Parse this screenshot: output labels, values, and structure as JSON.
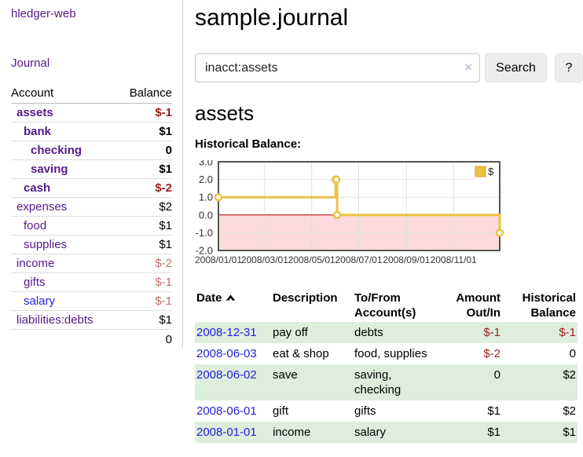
{
  "sidebar": {
    "brand": "hledger-web",
    "nav_journal": "Journal",
    "accounts_table": {
      "headers": [
        "Account",
        "Balance"
      ],
      "rows": [
        {
          "name": "assets",
          "indent": 0,
          "bold": true,
          "link_color": "purple",
          "balance": "$-1",
          "balance_style": "neg-strong"
        },
        {
          "name": "bank",
          "indent": 1,
          "bold": true,
          "link_color": "purple",
          "balance": "$1",
          "balance_style": "pos"
        },
        {
          "name": "checking",
          "indent": 2,
          "bold": true,
          "link_color": "purple",
          "balance": "0",
          "balance_style": "pos"
        },
        {
          "name": "saving",
          "indent": 2,
          "bold": true,
          "link_color": "purple",
          "balance": "$1",
          "balance_style": "pos"
        },
        {
          "name": "cash",
          "indent": 1,
          "bold": true,
          "link_color": "purple",
          "balance": "$-2",
          "balance_style": "neg-strong"
        },
        {
          "name": "expenses",
          "indent": 0,
          "bold": false,
          "link_color": "purple",
          "balance": "$2",
          "balance_style": "pos"
        },
        {
          "name": "food",
          "indent": 1,
          "bold": false,
          "link_color": "purple",
          "balance": "$1",
          "balance_style": "pos"
        },
        {
          "name": "supplies",
          "indent": 1,
          "bold": false,
          "link_color": "purple",
          "balance": "$1",
          "balance_style": "pos"
        },
        {
          "name": "income",
          "indent": 0,
          "bold": false,
          "link_color": "purple",
          "balance": "$-2",
          "balance_style": "neg-muted"
        },
        {
          "name": "gifts",
          "indent": 1,
          "bold": false,
          "link_color": "purple",
          "balance": "$-1",
          "balance_style": "neg-muted"
        },
        {
          "name": "salary",
          "indent": 1,
          "bold": false,
          "link_color": "blue",
          "balance": "$-1",
          "balance_style": "neg-muted"
        },
        {
          "name": "liabilities:debts",
          "indent": 0,
          "bold": false,
          "link_color": "purple",
          "balance": "$1",
          "balance_style": "pos"
        }
      ],
      "total": "0"
    }
  },
  "main": {
    "title": "sample.journal",
    "search": {
      "value": "inacct:assets",
      "clear_icon": "×",
      "button": "Search",
      "help_button": "?"
    },
    "account_heading": "assets",
    "chart_label": "Historical Balance:"
  },
  "chart_data": {
    "type": "line",
    "title": "Historical Balance",
    "xlim": [
      "2008-01-01",
      "2008-12-31"
    ],
    "ylim": [
      -2,
      3
    ],
    "x_ticks": [
      {
        "date": "2008-01-01",
        "label": "2008/01/01"
      },
      {
        "date": "2008-03-01",
        "label": "2008/03/01"
      },
      {
        "date": "2008-05-01",
        "label": "2008/05/01"
      },
      {
        "date": "2008-07-01",
        "label": "2008/07/01"
      },
      {
        "date": "2008-09-01",
        "label": "2008/09/01"
      },
      {
        "date": "2008-11-01",
        "label": "2008/11/01"
      }
    ],
    "y_ticks": [
      {
        "v": 3,
        "label": "3.0"
      },
      {
        "v": 2,
        "label": "2.0"
      },
      {
        "v": 1,
        "label": "1.0"
      },
      {
        "v": 0,
        "label": "0.0"
      },
      {
        "v": -1,
        "label": "-1.0"
      },
      {
        "v": -2,
        "label": "-2.0"
      }
    ],
    "series": [
      {
        "name": "$",
        "color": "#edc240",
        "step": true,
        "points": [
          [
            "2008-01-01",
            1
          ],
          [
            "2008-06-01",
            2
          ],
          [
            "2008-06-02",
            2
          ],
          [
            "2008-06-03",
            0
          ],
          [
            "2008-12-31",
            -1
          ]
        ]
      }
    ],
    "legend_position": "top-right",
    "negative_region_fill": "#fbdbdb",
    "zero_line_color": "#aa0000",
    "grid_color": "#e0e0e0",
    "border_color": "#555555"
  },
  "register": {
    "headers": [
      {
        "label": "Date",
        "sorted": "asc"
      },
      {
        "label": "Description"
      },
      {
        "label": "To/From Account(s)"
      },
      {
        "label": "Amount Out/In"
      },
      {
        "label": "Historical Balance"
      }
    ],
    "rows": [
      {
        "date": "2008-12-31",
        "description": "pay off",
        "accounts": "debts",
        "amount": "$-1",
        "amount_neg": true,
        "balance": "$-1",
        "balance_neg": true,
        "striped": true
      },
      {
        "date": "2008-06-03",
        "description": "eat & shop",
        "accounts": "food, supplies",
        "amount": "$-2",
        "amount_neg": true,
        "balance": "0",
        "balance_neg": false,
        "striped": false
      },
      {
        "date": "2008-06-02",
        "description": "save",
        "accounts": "saving, checking",
        "amount": "0",
        "amount_neg": false,
        "balance": "$2",
        "balance_neg": false,
        "striped": true
      },
      {
        "date": "2008-06-01",
        "description": "gift",
        "accounts": "gifts",
        "amount": "$1",
        "amount_neg": false,
        "balance": "$2",
        "balance_neg": false,
        "striped": false
      },
      {
        "date": "2008-01-01",
        "description": "income",
        "accounts": "salary",
        "amount": "$1",
        "amount_neg": false,
        "balance": "$1",
        "balance_neg": false,
        "striped": true
      }
    ]
  },
  "colors": {
    "link_purple": "#551A8B",
    "link_blue": "#2222dd",
    "negative_strong": "#9b1c1c",
    "negative_muted": "#bf6f6f",
    "stripe_green": "#ddeedd",
    "series_gold": "#edc240"
  }
}
